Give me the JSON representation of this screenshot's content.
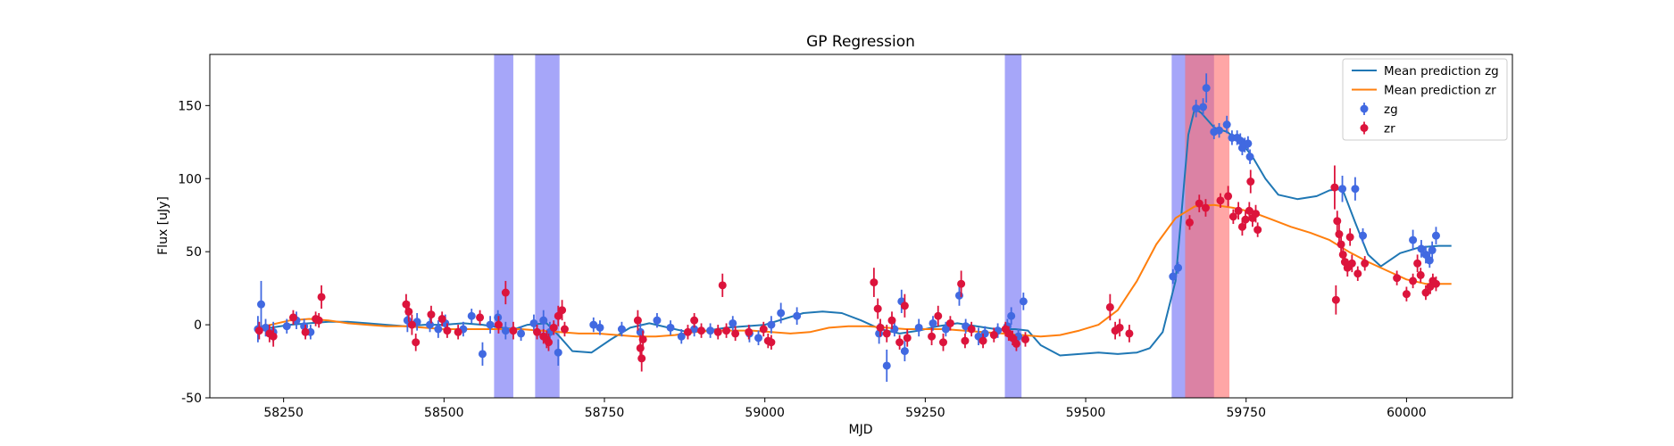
{
  "chart_data": {
    "type": "scatter",
    "title": "GP Regression",
    "xlabel": "MJD",
    "ylabel": "Flux [uJy]",
    "xlim": [
      58135,
      60165
    ],
    "ylim": [
      -50,
      185
    ],
    "xticks": [
      58250,
      58500,
      58750,
      59000,
      59250,
      59500,
      59750,
      60000
    ],
    "yticks": [
      -50,
      0,
      50,
      100,
      150
    ],
    "grid": false,
    "legend_position": "top-right",
    "colors": {
      "zg_line": "#1f77b4",
      "zr_line": "#ff7f0e",
      "zg_points": "#4169e1",
      "zr_points": "#dc143c",
      "span_blue": "#6a6af5",
      "span_red": "#ff6b6b"
    },
    "legend": [
      {
        "label": "Mean prediction zg",
        "kind": "line",
        "color": "#1f77b4"
      },
      {
        "label": "Mean prediction zr",
        "kind": "line",
        "color": "#ff7f0e"
      },
      {
        "label": "zg",
        "kind": "errorbar",
        "color": "#4169e1"
      },
      {
        "label": "zr",
        "kind": "errorbar",
        "color": "#dc143c"
      }
    ],
    "shaded_regions": [
      {
        "band": "zg",
        "x0": 58578,
        "x1": 58608
      },
      {
        "band": "zg",
        "x0": 58642,
        "x1": 58680
      },
      {
        "band": "zg",
        "x0": 59374,
        "x1": 59400
      },
      {
        "band": "zg",
        "x0": 59634,
        "x1": 59700
      },
      {
        "band": "zr",
        "x0": 59655,
        "x1": 59724
      }
    ],
    "series": [
      {
        "name": "Mean prediction zg",
        "kind": "line",
        "x": [
          58205,
          58230,
          58260,
          58290,
          58320,
          58350,
          58380,
          58410,
          58440,
          58470,
          58500,
          58530,
          58560,
          58590,
          58610,
          58630,
          58660,
          58680,
          58700,
          58730,
          58760,
          58790,
          58820,
          58850,
          58880,
          58910,
          58940,
          58970,
          59000,
          59030,
          59060,
          59090,
          59120,
          59150,
          59180,
          59210,
          59240,
          59270,
          59300,
          59330,
          59360,
          59390,
          59410,
          59430,
          59460,
          59490,
          59520,
          59550,
          59580,
          59600,
          59620,
          59640,
          59650,
          59660,
          59670,
          59680,
          59700,
          59720,
          59740,
          59760,
          59780,
          59800,
          59830,
          59860,
          59880,
          59900,
          59920,
          59940,
          59960,
          59990,
          60020,
          60050,
          60070
        ],
        "y": [
          -3,
          -2,
          0,
          1,
          2,
          2,
          1,
          0,
          -1,
          0,
          0,
          1,
          0,
          -2,
          -3,
          0,
          1,
          -8,
          -18,
          -19,
          -10,
          -2,
          1,
          -2,
          -5,
          -4,
          -2,
          -1,
          0,
          4,
          8,
          9,
          8,
          3,
          -3,
          -6,
          -4,
          -1,
          1,
          -1,
          -3,
          -3,
          -4,
          -14,
          -21,
          -20,
          -19,
          -20,
          -19,
          -16,
          -5,
          30,
          80,
          130,
          148,
          145,
          135,
          132,
          126,
          115,
          100,
          89,
          86,
          88,
          92,
          93,
          70,
          48,
          40,
          49,
          53,
          54,
          54
        ]
      },
      {
        "name": "Mean prediction zr",
        "kind": "line",
        "x": [
          58205,
          58230,
          58260,
          58290,
          58320,
          58350,
          58380,
          58410,
          58440,
          58470,
          58500,
          58530,
          58560,
          58590,
          58620,
          58650,
          58680,
          58710,
          58740,
          58770,
          58800,
          58830,
          58860,
          58890,
          58920,
          58950,
          58980,
          59010,
          59040,
          59070,
          59100,
          59130,
          59160,
          59190,
          59220,
          59250,
          59280,
          59310,
          59340,
          59370,
          59400,
          59430,
          59460,
          59490,
          59520,
          59550,
          59580,
          59610,
          59640,
          59670,
          59700,
          59730,
          59760,
          59790,
          59820,
          59850,
          59880,
          59910,
          59940,
          59970,
          60000,
          60030,
          60060,
          60070
        ],
        "y": [
          -2,
          0,
          3,
          4,
          3,
          1,
          0,
          -1,
          -1,
          -2,
          -3,
          -3,
          -3,
          -3,
          -3,
          -4,
          -5,
          -6,
          -6,
          -7,
          -8,
          -8,
          -7,
          -5,
          -4,
          -4,
          -4,
          -5,
          -6,
          -5,
          -2,
          -1,
          -1,
          -2,
          -3,
          -3,
          -3,
          -4,
          -5,
          -6,
          -7,
          -8,
          -7,
          -4,
          0,
          10,
          30,
          55,
          73,
          81,
          82,
          80,
          77,
          72,
          67,
          63,
          58,
          50,
          43,
          37,
          31,
          28,
          28,
          28
        ]
      },
      {
        "name": "zg",
        "kind": "errorbar",
        "points": [
          [
            58210,
            -3,
            9
          ],
          [
            58215,
            14,
            16
          ],
          [
            58222,
            -2,
            6
          ],
          [
            58234,
            -5,
            7
          ],
          [
            58255,
            -1,
            5
          ],
          [
            58270,
            3,
            6
          ],
          [
            58282,
            -1,
            5
          ],
          [
            58292,
            -5,
            5
          ],
          [
            58443,
            3,
            8
          ],
          [
            58458,
            2,
            6
          ],
          [
            58478,
            0,
            5
          ],
          [
            58491,
            -3,
            6
          ],
          [
            58502,
            1,
            6
          ],
          [
            58530,
            -3,
            5
          ],
          [
            58543,
            6,
            5
          ],
          [
            58560,
            -20,
            8
          ],
          [
            58572,
            0,
            6
          ],
          [
            58584,
            5,
            5
          ],
          [
            58596,
            -4,
            6
          ],
          [
            58620,
            -6,
            5
          ],
          [
            58640,
            1,
            6
          ],
          [
            58655,
            3,
            7
          ],
          [
            58665,
            -5,
            7
          ],
          [
            58678,
            -19,
            9
          ],
          [
            58733,
            0,
            5
          ],
          [
            58743,
            -2,
            5
          ],
          [
            58777,
            -3,
            5
          ],
          [
            58806,
            -5,
            6
          ],
          [
            58832,
            3,
            5
          ],
          [
            58853,
            -2,
            5
          ],
          [
            58870,
            -8,
            5
          ],
          [
            58890,
            -3,
            5
          ],
          [
            58915,
            -4,
            5
          ],
          [
            58950,
            1,
            5
          ],
          [
            58976,
            -6,
            6
          ],
          [
            58990,
            -9,
            5
          ],
          [
            59010,
            0,
            6
          ],
          [
            59025,
            8,
            7
          ],
          [
            59050,
            6,
            6
          ],
          [
            59178,
            -6,
            7
          ],
          [
            59190,
            -28,
            11
          ],
          [
            59202,
            -3,
            5
          ],
          [
            59213,
            16,
            8
          ],
          [
            59218,
            -18,
            7
          ],
          [
            59240,
            -2,
            6
          ],
          [
            59262,
            1,
            5
          ],
          [
            59282,
            -3,
            5
          ],
          [
            59303,
            20,
            7
          ],
          [
            59313,
            -1,
            5
          ],
          [
            59333,
            -8,
            6
          ],
          [
            59343,
            -6,
            5
          ],
          [
            59363,
            -4,
            5
          ],
          [
            59378,
            -1,
            5
          ],
          [
            59384,
            6,
            6
          ],
          [
            59395,
            -8,
            5
          ],
          [
            59403,
            16,
            6
          ],
          [
            59636,
            33,
            5
          ],
          [
            59644,
            39,
            4
          ],
          [
            59672,
            148,
            6
          ],
          [
            59683,
            149,
            6
          ],
          [
            59688,
            162,
            10
          ],
          [
            59700,
            132,
            5
          ],
          [
            59708,
            133,
            5
          ],
          [
            59720,
            137,
            6
          ],
          [
            59728,
            128,
            5
          ],
          [
            59736,
            128,
            5
          ],
          [
            59741,
            126,
            5
          ],
          [
            59744,
            121,
            5
          ],
          [
            59748,
            123,
            5
          ],
          [
            59753,
            124,
            5
          ],
          [
            59756,
            115,
            5
          ],
          [
            59900,
            93,
            9
          ],
          [
            59920,
            93,
            8
          ],
          [
            59932,
            61,
            5
          ],
          [
            60010,
            58,
            7
          ],
          [
            60023,
            52,
            6
          ],
          [
            60030,
            48,
            6
          ],
          [
            60036,
            44,
            5
          ],
          [
            60040,
            51,
            6
          ],
          [
            60046,
            61,
            6
          ]
        ]
      },
      {
        "name": "zr",
        "kind": "errorbar",
        "points": [
          [
            58212,
            -4,
            6
          ],
          [
            58228,
            -6,
            6
          ],
          [
            58234,
            -8,
            7
          ],
          [
            58265,
            5,
            5
          ],
          [
            58284,
            -5,
            5
          ],
          [
            58300,
            4,
            5
          ],
          [
            58305,
            3,
            5
          ],
          [
            58309,
            19,
            8
          ],
          [
            58441,
            14,
            7
          ],
          [
            58445,
            9,
            7
          ],
          [
            58450,
            0,
            7
          ],
          [
            58456,
            -12,
            6
          ],
          [
            58480,
            7,
            6
          ],
          [
            58497,
            4,
            5
          ],
          [
            58505,
            -4,
            5
          ],
          [
            58522,
            -5,
            5
          ],
          [
            58556,
            5,
            5
          ],
          [
            58585,
            0,
            6
          ],
          [
            58596,
            22,
            8
          ],
          [
            58608,
            -4,
            6
          ],
          [
            58645,
            -5,
            5
          ],
          [
            58655,
            -8,
            5
          ],
          [
            58660,
            -10,
            6
          ],
          [
            58663,
            -12,
            6
          ],
          [
            58671,
            -2,
            5
          ],
          [
            58678,
            6,
            7
          ],
          [
            58684,
            10,
            7
          ],
          [
            58688,
            -3,
            5
          ],
          [
            58802,
            3,
            7
          ],
          [
            58806,
            -16,
            9
          ],
          [
            58808,
            -23,
            9
          ],
          [
            58810,
            -10,
            6
          ],
          [
            58880,
            -5,
            5
          ],
          [
            58890,
            3,
            5
          ],
          [
            58901,
            -4,
            5
          ],
          [
            58927,
            -5,
            5
          ],
          [
            58934,
            27,
            8
          ],
          [
            58940,
            -4,
            5
          ],
          [
            58954,
            -6,
            5
          ],
          [
            58975,
            -5,
            5
          ],
          [
            58998,
            -3,
            5
          ],
          [
            59005,
            -11,
            5
          ],
          [
            59010,
            -12,
            5
          ],
          [
            59170,
            29,
            10
          ],
          [
            59176,
            11,
            7
          ],
          [
            59180,
            -2,
            6
          ],
          [
            59190,
            -6,
            6
          ],
          [
            59198,
            3,
            6
          ],
          [
            59210,
            -12,
            5
          ],
          [
            59218,
            13,
            8
          ],
          [
            59222,
            -9,
            6
          ],
          [
            59260,
            -8,
            6
          ],
          [
            59270,
            6,
            7
          ],
          [
            59278,
            -12,
            6
          ],
          [
            59289,
            1,
            5
          ],
          [
            59306,
            28,
            9
          ],
          [
            59312,
            -11,
            5
          ],
          [
            59322,
            -3,
            5
          ],
          [
            59340,
            -11,
            5
          ],
          [
            59357,
            -7,
            5
          ],
          [
            59375,
            -3,
            5
          ],
          [
            59380,
            -6,
            5
          ],
          [
            59386,
            -9,
            5
          ],
          [
            59392,
            -13,
            5
          ],
          [
            59406,
            -10,
            5
          ],
          [
            59538,
            12,
            9
          ],
          [
            59546,
            -4,
            6
          ],
          [
            59553,
            -2,
            6
          ],
          [
            59568,
            -6,
            6
          ],
          [
            59662,
            70,
            5
          ],
          [
            59677,
            83,
            6
          ],
          [
            59687,
            80,
            6
          ],
          [
            59710,
            85,
            5
          ],
          [
            59722,
            88,
            7
          ],
          [
            59730,
            74,
            5
          ],
          [
            59738,
            78,
            6
          ],
          [
            59744,
            67,
            6
          ],
          [
            59749,
            72,
            6
          ],
          [
            59755,
            78,
            6
          ],
          [
            59757,
            98,
            8
          ],
          [
            59760,
            73,
            6
          ],
          [
            59765,
            76,
            6
          ],
          [
            59768,
            65,
            5
          ],
          [
            59888,
            94,
            15
          ],
          [
            59890,
            17,
            10
          ],
          [
            59892,
            71,
            7
          ],
          [
            59895,
            62,
            7
          ],
          [
            59898,
            55,
            6
          ],
          [
            59901,
            48,
            6
          ],
          [
            59904,
            43,
            6
          ],
          [
            59908,
            39,
            6
          ],
          [
            59912,
            60,
            6
          ],
          [
            59915,
            42,
            6
          ],
          [
            59924,
            35,
            5
          ],
          [
            59935,
            42,
            5
          ],
          [
            59985,
            32,
            5
          ],
          [
            60000,
            21,
            5
          ],
          [
            60010,
            30,
            5
          ],
          [
            60017,
            42,
            6
          ],
          [
            60022,
            34,
            5
          ],
          [
            60030,
            22,
            5
          ],
          [
            60037,
            26,
            5
          ],
          [
            60041,
            30,
            5
          ],
          [
            60046,
            28,
            5
          ]
        ]
      }
    ]
  }
}
